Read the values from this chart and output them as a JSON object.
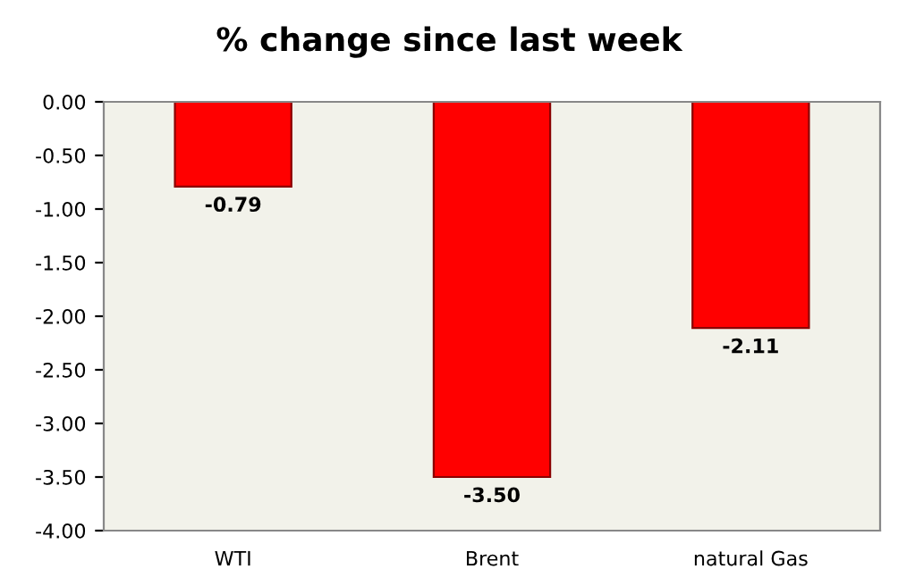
{
  "chart_data": {
    "type": "bar",
    "title": "% change since last week",
    "categories": [
      "WTI",
      "Brent",
      "natural Gas"
    ],
    "values": [
      -0.79,
      -3.5,
      -2.11
    ],
    "value_labels": [
      "-0.79",
      "-3.50",
      "-2.11"
    ],
    "color": "#ff0000",
    "ylim": [
      -4,
      0
    ],
    "yticks": [
      {
        "value": 0,
        "label": "0.00"
      },
      {
        "value": -0.5,
        "label": "-0.50"
      },
      {
        "value": -1,
        "label": "-1.00"
      },
      {
        "value": -1.5,
        "label": "-1.50"
      },
      {
        "value": -2,
        "label": "-2.00"
      },
      {
        "value": -2.5,
        "label": "-2.50"
      },
      {
        "value": -3,
        "label": "-3.00"
      },
      {
        "value": -3.5,
        "label": "-3.50"
      },
      {
        "value": -4,
        "label": "-4.00"
      }
    ],
    "grid": false
  }
}
